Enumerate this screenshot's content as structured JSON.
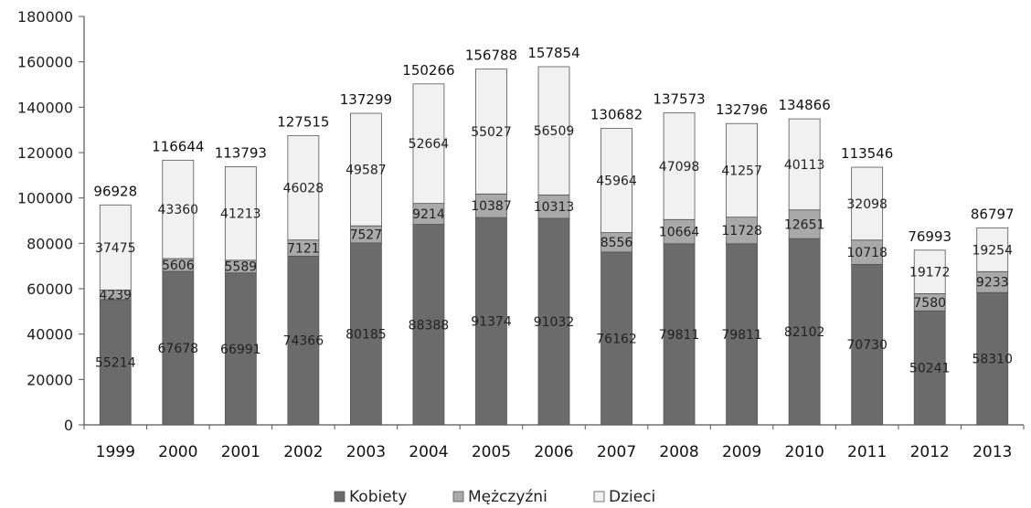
{
  "chart_data": {
    "type": "bar",
    "stacked": true,
    "categories": [
      "1999",
      "2000",
      "2001",
      "2002",
      "2003",
      "2004",
      "2005",
      "2006",
      "2007",
      "2008",
      "2009",
      "2010",
      "2011",
      "2012",
      "2013"
    ],
    "series": [
      {
        "name": "Kobiety",
        "color": "#6b6b6b",
        "values": [
          55214,
          67678,
          66991,
          74366,
          80185,
          88388,
          91374,
          91032,
          76162,
          79811,
          79811,
          82102,
          70730,
          50241,
          58310
        ]
      },
      {
        "name": "Mężczyźni",
        "color": "#a9a9a9",
        "values": [
          4239,
          5606,
          5589,
          7121,
          7527,
          9214,
          10387,
          10313,
          8556,
          10664,
          11728,
          12651,
          10718,
          7580,
          9233
        ]
      },
      {
        "name": "Dzieci",
        "color": "#f1f1f1",
        "values": [
          37475,
          43360,
          41213,
          46028,
          49587,
          52664,
          55027,
          56509,
          45964,
          47098,
          41257,
          40113,
          32098,
          19172,
          19254
        ]
      }
    ],
    "totals": [
      96928,
      116644,
      113793,
      127515,
      137299,
      150266,
      156788,
      157854,
      130682,
      137573,
      132796,
      134866,
      113546,
      76993,
      86797
    ],
    "yticks": [
      0,
      20000,
      40000,
      60000,
      80000,
      100000,
      120000,
      140000,
      160000,
      180000
    ],
    "ylim": [
      0,
      180000
    ],
    "title": "",
    "xlabel": "",
    "ylabel": "",
    "legend_position": "bottom-center",
    "grid": false
  }
}
